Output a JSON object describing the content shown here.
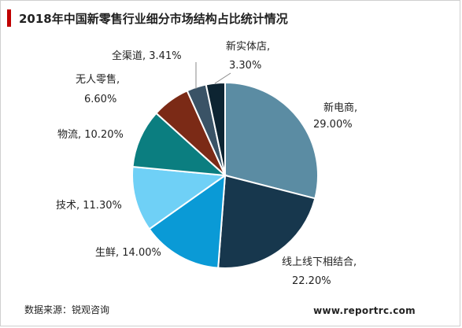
{
  "title": "2018年中国新零售行业细分市场结构占比统计情况",
  "source": "数据来源：锐观咨询",
  "website": "www.reportrc.com",
  "chart_data": {
    "type": "pie",
    "title": "2018年中国新零售行业细分市场结构占比统计情况",
    "unit": "%",
    "slices": [
      {
        "label": "新电商",
        "value": 29.0,
        "display": "29.00%",
        "color": "#5b8ca3"
      },
      {
        "label": "线上线下相结合",
        "value": 22.2,
        "display": "22.20%",
        "color": "#17374d"
      },
      {
        "label": "生鲜",
        "value": 14.0,
        "display": "14.00%",
        "color": "#0a9ad6"
      },
      {
        "label": "技术",
        "value": 11.3,
        "display": "11.30%",
        "color": "#6fd0f6"
      },
      {
        "label": "物流",
        "value": 10.2,
        "display": "10.20%",
        "color": "#0b7e80"
      },
      {
        "label": "无人零售",
        "value": 6.6,
        "display": "6.60%",
        "color": "#7b2a16"
      },
      {
        "label": "全渠道",
        "value": 3.41,
        "display": "3.41%",
        "color": "#3a5366"
      },
      {
        "label": "新实体店",
        "value": 3.3,
        "display": "3.30%",
        "color": "#0d2432"
      }
    ]
  }
}
